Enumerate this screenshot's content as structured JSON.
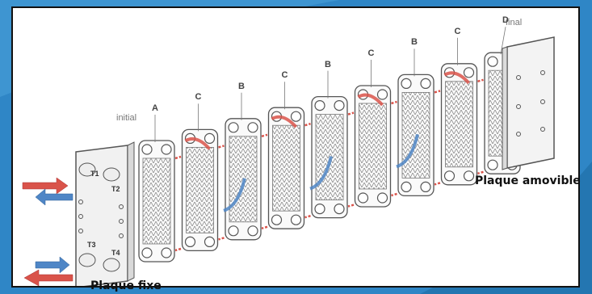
{
  "labels": {
    "initial": "initial",
    "final": "final",
    "fixed_plate": "Plaque fixe",
    "movable_plate": "Plaque amovible"
  },
  "plate_letters": [
    "A",
    "C",
    "B",
    "C",
    "B",
    "C",
    "B",
    "C",
    "D"
  ],
  "ports": [
    "T1",
    "T2",
    "T3",
    "T4"
  ],
  "colors": {
    "hot_flow": "#d9534a",
    "cold_flow": "#4f86c6",
    "plate_outline": "#555555",
    "background": "#2f86c6"
  }
}
